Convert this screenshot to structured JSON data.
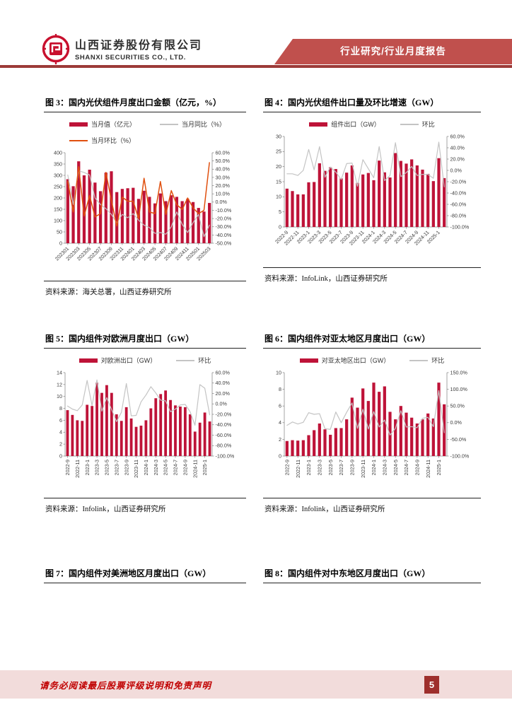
{
  "header": {
    "company_cn": "山西证券股份有限公司",
    "company_en": "SHANXI SECURITIES CO., LTD.",
    "banner": "行业研究/行业月度报告"
  },
  "footer": {
    "disclaimer": "请务必阅读最后股票评级说明和免责声明",
    "page_number": "5"
  },
  "pending_figures": {
    "fig7_title": "图 7：国内组件对美洲地区月度出口（GW）",
    "fig8_title": "图 8：国内组件对中东地区月度出口（GW）"
  },
  "colors": {
    "bar_red": "#be1338",
    "line_orange": "#e0500f",
    "line_gray": "#c4c4c4",
    "banner_red": "#c0504d",
    "header_rule_red": "#9c3a38",
    "footer_bg": "#f2dcdb",
    "footer_text_red": "#c00000",
    "page_box_red": "#9e2f2c",
    "brand_red": "#c8102e"
  },
  "chart_data": [
    {
      "id": "fig3",
      "type": "bar",
      "title": "图 3：国内光伏组件月度出口金额（亿元，%）",
      "source": "资料来源：海关总署，山西证券研究所",
      "left_axis": {
        "min": 0,
        "max": 400,
        "step": 50
      },
      "right_axis": {
        "min": -50,
        "max": 60,
        "step": 10
      },
      "categories": [
        "202301",
        "202302",
        "202303",
        "202304",
        "202305",
        "202306",
        "202307",
        "202308",
        "202309",
        "202310",
        "202311",
        "202312",
        "202401",
        "202402",
        "202403",
        "202404",
        "202405",
        "202406",
        "202407",
        "202408",
        "202409",
        "202410",
        "202411",
        "202412",
        "202501",
        "202502",
        "202503"
      ],
      "series": [
        {
          "name": "当月值（亿元）",
          "type": "bar",
          "axis": "left",
          "color": "#be1338",
          "values": [
            283,
            252,
            362,
            300,
            325,
            268,
            230,
            312,
            318,
            226,
            240,
            243,
            245,
            196,
            232,
            205,
            176,
            220,
            186,
            212,
            205,
            186,
            196,
            182,
            156,
            140,
            178
          ]
        },
        {
          "name": "当月同比（%）",
          "type": "line",
          "axis": "right",
          "color": "#c4c4c4",
          "values": [
            33,
            -3,
            38,
            36,
            33,
            5,
            -3,
            -8,
            -15,
            -25,
            -15,
            -19,
            -14,
            -22,
            -28,
            -31,
            -38,
            -37,
            -39,
            -30,
            -12,
            -27,
            -37,
            -25,
            -15,
            -42,
            -28
          ]
        },
        {
          "name": "当月环比（%）",
          "type": "line",
          "axis": "right",
          "color": "#e0500f",
          "values": [
            25,
            -12,
            43,
            -17,
            8,
            -18,
            -14,
            36,
            2,
            -29,
            6,
            1,
            1,
            -20,
            29,
            -12,
            -14,
            25,
            -15,
            14,
            -3,
            -9,
            5,
            -7,
            -14,
            -10,
            48
          ]
        }
      ]
    },
    {
      "id": "fig4",
      "type": "bar",
      "title": "图 4：国内光伏组件出口量及环比增速（GW）",
      "source": "资料来源：InfoLink，山西证券研究所",
      "left_axis": {
        "min": 0,
        "max": 30,
        "step": 5
      },
      "right_axis": {
        "min": -100,
        "max": 60,
        "step": 20
      },
      "categories": [
        "2022-9",
        "2022-10",
        "2022-11",
        "2022-12",
        "2023-1",
        "2023-2",
        "2023-3",
        "2023-4",
        "2023-5",
        "2023-6",
        "2023-7",
        "2023-8",
        "2023-9",
        "2023-10",
        "2023-11",
        "2023-12",
        "2024-1",
        "2024-2",
        "2024-3",
        "2024-4",
        "2024-5",
        "2024-6",
        "2024-7",
        "2024-8",
        "2024-9",
        "2024-10",
        "2024-11",
        "2024-12",
        "2025-1",
        "2025-2"
      ],
      "series": [
        {
          "name": "组件出口（GW）",
          "type": "bar",
          "axis": "left",
          "color": "#be1338",
          "values": [
            12.7,
            11.9,
            10.8,
            10.8,
            14.8,
            14.9,
            21.1,
            18.6,
            19.8,
            19.2,
            16.1,
            18.0,
            20.4,
            14.6,
            17.4,
            17.9,
            15.5,
            22.0,
            18.1,
            16.4,
            24.5,
            21.9,
            21.0,
            22.4,
            20.4,
            19.0,
            17.6,
            15.2,
            22.8,
            16.2
          ]
        },
        {
          "name": "环比",
          "type": "line",
          "axis": "right",
          "color": "#c4c4c4",
          "values": [
            -6,
            -6,
            -9,
            0,
            37,
            1,
            42,
            -12,
            6,
            -3,
            -16,
            12,
            13,
            -28,
            19,
            3,
            -13,
            42,
            -18,
            -9,
            49,
            -11,
            -4,
            7,
            -9,
            -7,
            -7,
            -14,
            50,
            -29
          ]
        }
      ]
    },
    {
      "id": "fig5",
      "type": "bar",
      "title": "图 5：国内组件对欧洲月度出口（GW）",
      "source": "资料来源：Infolink，山西证券研究所",
      "left_axis": {
        "min": 0,
        "max": 14,
        "step": 2
      },
      "right_axis": {
        "min": -100,
        "max": 60,
        "step": 20
      },
      "categories": [
        "2022-9",
        "2022-10",
        "2022-11",
        "2022-12",
        "2023-1",
        "2023-2",
        "2023-3",
        "2023-4",
        "2023-5",
        "2023-6",
        "2023-7",
        "2023-8",
        "2023-9",
        "2023-10",
        "2023-11",
        "2023-12",
        "2024-1",
        "2024-2",
        "2024-3",
        "2024-4",
        "2024-5",
        "2024-6",
        "2024-7",
        "2024-8",
        "2024-9",
        "2024-10",
        "2024-11",
        "2024-12",
        "2025-1",
        "2025-2"
      ],
      "series": [
        {
          "name": "对欧洲出口（GW）",
          "type": "bar",
          "axis": "left",
          "color": "#be1338",
          "values": [
            7.7,
            6.9,
            6.0,
            5.9,
            8.6,
            8.4,
            12.3,
            10.6,
            11.9,
            10.6,
            7.0,
            5.9,
            8.2,
            6.3,
            4.9,
            5.1,
            6.0,
            8.0,
            9.7,
            10.4,
            11.0,
            9.4,
            8.5,
            8.3,
            8.2,
            7.0,
            4.1,
            5.6,
            7.3,
            5.8
          ]
        },
        {
          "name": "环比",
          "type": "line",
          "axis": "right",
          "color": "#c4c4c4",
          "values": [
            -4,
            -10,
            -13,
            -2,
            45,
            -3,
            46,
            -14,
            12,
            -11,
            -34,
            -16,
            39,
            -23,
            -22,
            4,
            17,
            33,
            21,
            7,
            6,
            -15,
            -10,
            -2,
            -1,
            -15,
            -41,
            37,
            30,
            -21
          ]
        }
      ]
    },
    {
      "id": "fig6",
      "type": "bar",
      "title": "图 6：国内组件对亚太地区月度出口（GW）",
      "source": "资料来源：Infolink，山西证券研究所",
      "left_axis": {
        "min": 0,
        "max": 10,
        "step": 2
      },
      "right_axis": {
        "min": -100,
        "max": 150,
        "step": 50
      },
      "categories": [
        "2022-9",
        "2022-10",
        "2022-11",
        "2022-12",
        "2023-1",
        "2023-2",
        "2023-3",
        "2023-4",
        "2023-5",
        "2023-6",
        "2023-7",
        "2023-8",
        "2023-9",
        "2023-10",
        "2023-11",
        "2023-12",
        "2024-1",
        "2024-2",
        "2024-3",
        "2024-4",
        "2024-5",
        "2024-6",
        "2024-7",
        "2024-8",
        "2024-9",
        "2024-10",
        "2024-11",
        "2024-12",
        "2025-1",
        "2025-2"
      ],
      "series": [
        {
          "name": "对亚太地区出口（GW）",
          "type": "bar",
          "axis": "left",
          "color": "#be1338",
          "values": [
            1.8,
            1.9,
            1.85,
            1.9,
            2.5,
            3.1,
            3.9,
            3.2,
            2.55,
            3.35,
            3.35,
            4.4,
            7.0,
            5.8,
            8.1,
            6.6,
            8.8,
            7.7,
            8.35,
            5.3,
            4.4,
            6.0,
            5.2,
            4.6,
            3.9,
            4.4,
            5.1,
            4.5,
            8.8,
            6.2
          ]
        },
        {
          "name": "环比",
          "type": "line",
          "axis": "right",
          "color": "#c4c4c4",
          "values": [
            -8,
            2,
            -4,
            1,
            30,
            25,
            27,
            -18,
            -20,
            32,
            0,
            31,
            59,
            -17,
            40,
            -19,
            33,
            -13,
            8,
            -37,
            -17,
            36,
            -13,
            -12,
            -15,
            13,
            16,
            -12,
            96,
            -30
          ]
        }
      ]
    }
  ]
}
